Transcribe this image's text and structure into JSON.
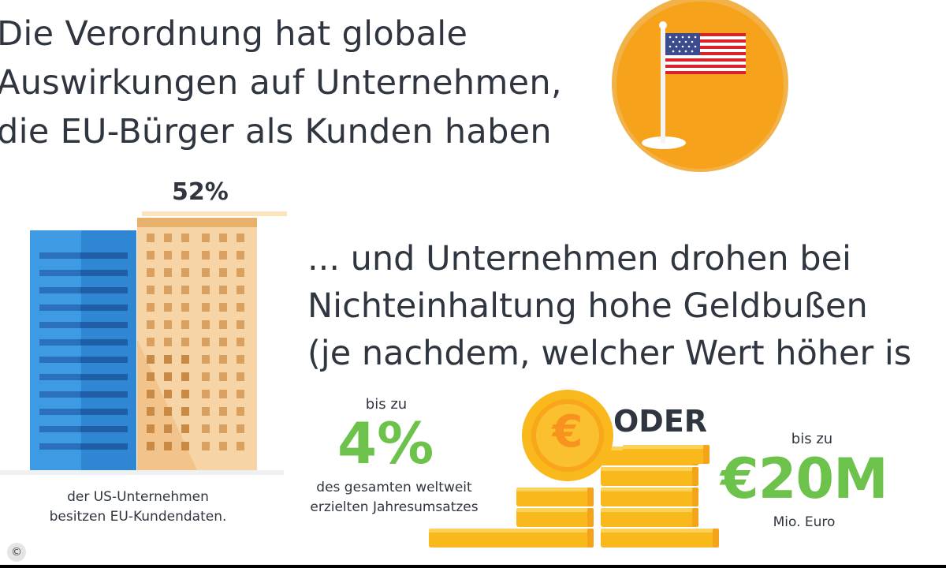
{
  "headline": {
    "line1": "Die Verordnung hat globale",
    "line2": "Auswirkungen auf Unternehmen,",
    "line3": "die EU-Bürger als Kunden haben"
  },
  "stat_us": {
    "value_label": "52%",
    "value": 52,
    "caption_line1": "der US-Unternehmen",
    "caption_line2": "besitzen EU-Kundendaten."
  },
  "fines": {
    "intro_line1": "... und Unternehmen drohen bei",
    "intro_line2": "Nichteinhaltung hohe Geldbußen",
    "intro_line3": "(je nachdem, welcher Wert höher is",
    "option1": {
      "prefix": "bis zu",
      "value": "4%",
      "caption_line1": "des gesamten weltweit",
      "caption_line2": "erzielten Jahresumsatzes"
    },
    "separator": "ODER",
    "option2": {
      "prefix": "bis zu",
      "value": "€20M",
      "caption": "Mio. Euro"
    },
    "coin_symbol": "€"
  },
  "copyright_symbol": "©",
  "icons": {
    "flag": "us-flag-icon",
    "buildings": "building-icon",
    "coins": "coin-stack-icon"
  },
  "colors": {
    "text": "#2f3640",
    "accent_green": "#6cc24a",
    "orange": "#f7a21b",
    "blue": "#2f86d3",
    "tan": "#f2c48b",
    "gold": "#f9b81b"
  }
}
